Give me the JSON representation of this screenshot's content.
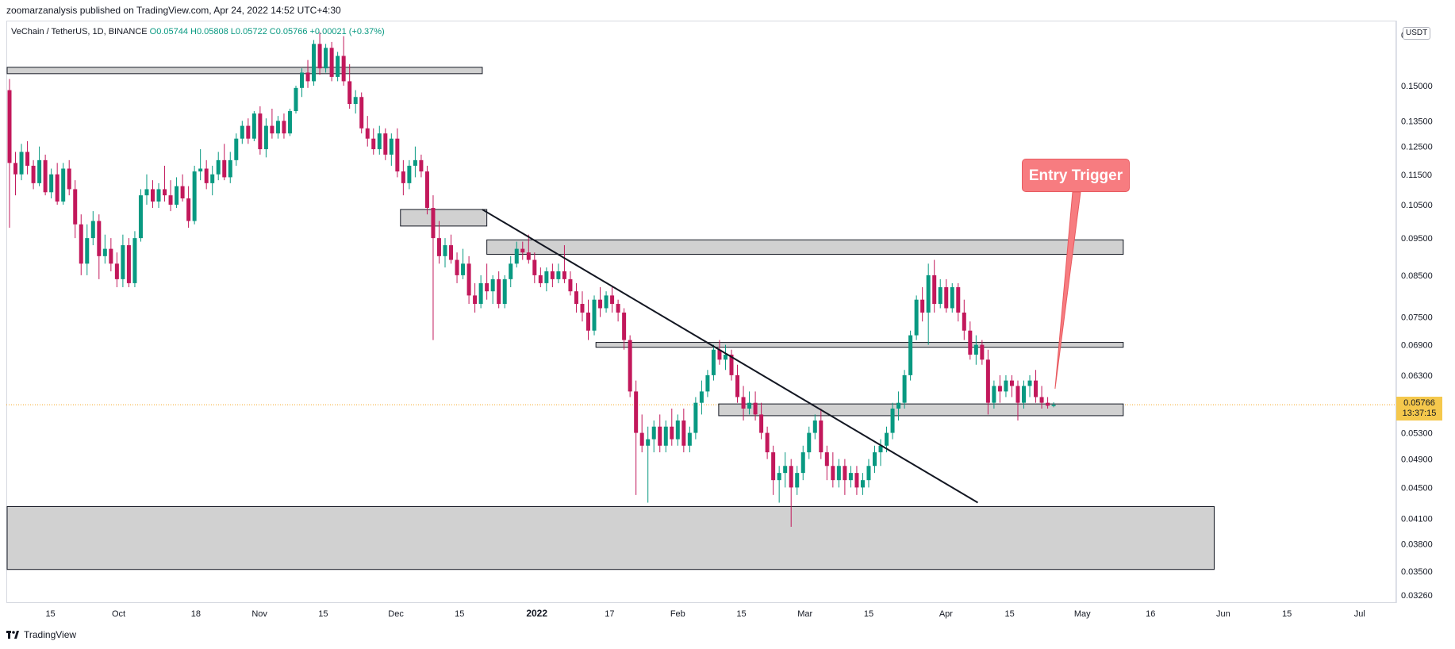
{
  "header": {
    "publisher_line": "zoomarzanalysis published on TradingView.com, Apr 24, 2022 14:52 UTC+4:30"
  },
  "legend": {
    "symbol": "VeChain / TetherUS, 1D, BINANCE",
    "ohlc": "O0.05744 H0.05808 L0.05722 C0.05766 +0.00021 (+0.37%)"
  },
  "price_axis": {
    "currency": "USDT",
    "top_label": "0",
    "last_price": "0.05766",
    "countdown": "13:37:15"
  },
  "annotation": {
    "callout_text": "Entry Trigger"
  },
  "footer": {
    "brand": "TradingView"
  },
  "colors": {
    "up": "#089981",
    "down": "#c2185b",
    "zone_fill": "#d1d1d1",
    "callout": "#f77c80",
    "price_tag": "#f5c84c"
  },
  "chart_data": {
    "type": "candlestick",
    "ylim": [
      0.0326,
      0.178
    ],
    "y_ticks": [
      "0.15000",
      "0.13500",
      "0.12500",
      "0.11500",
      "0.10500",
      "0.09500",
      "0.08500",
      "0.07500",
      "0.06900",
      "0.06300",
      "0.05300",
      "0.04900",
      "0.04500",
      "0.04100",
      "0.03800",
      "0.03500",
      "0.03260"
    ],
    "x_ticks": [
      "15",
      "Oct",
      "18",
      "Nov",
      "15",
      "Dec",
      "15",
      "2022",
      "17",
      "Feb",
      "15",
      "Mar",
      "15",
      "Apr",
      "15",
      "May",
      "16",
      "Jun",
      "15",
      "Jul"
    ],
    "last_price": 0.05766,
    "zones": [
      {
        "x_from": "Sep 6",
        "x_to": "Dec 20",
        "y_low": 0.1555,
        "y_high": 0.1585
      },
      {
        "x_from": "Dec 2",
        "x_to": "Dec 21",
        "y_low": 0.0985,
        "y_high": 0.1035
      },
      {
        "x_from": "Dec 21",
        "x_to": "May 10",
        "y_low": 0.0905,
        "y_high": 0.0945
      },
      {
        "x_from": "Jan 14",
        "x_to": "May 10",
        "y_low": 0.0685,
        "y_high": 0.0695
      },
      {
        "x_from": "Feb 10",
        "x_to": "May 10",
        "y_low": 0.0558,
        "y_high": 0.0578
      },
      {
        "x_from": "Sep 6",
        "x_to": "May 30",
        "y_low": 0.0352,
        "y_high": 0.0425
      }
    ],
    "trendline": {
      "from": [
        "Dec 20",
        0.1035
      ],
      "to": [
        "Apr 8",
        0.043
      ]
    },
    "callout_target": [
      "Apr 25",
      0.0605
    ],
    "candles": [
      [
        0.148,
        0.153,
        0.098,
        0.119
      ],
      [
        0.119,
        0.123,
        0.108,
        0.115
      ],
      [
        0.115,
        0.126,
        0.113,
        0.123
      ],
      [
        0.123,
        0.127,
        0.115,
        0.118
      ],
      [
        0.118,
        0.12,
        0.11,
        0.112
      ],
      [
        0.112,
        0.125,
        0.111,
        0.12
      ],
      [
        0.12,
        0.122,
        0.108,
        0.109
      ],
      [
        0.109,
        0.117,
        0.107,
        0.115
      ],
      [
        0.115,
        0.119,
        0.105,
        0.106
      ],
      [
        0.106,
        0.119,
        0.105,
        0.117
      ],
      [
        0.117,
        0.12,
        0.108,
        0.11
      ],
      [
        0.11,
        0.113,
        0.095,
        0.099
      ],
      [
        0.099,
        0.102,
        0.085,
        0.088
      ],
      [
        0.088,
        0.099,
        0.085,
        0.095
      ],
      [
        0.095,
        0.103,
        0.093,
        0.1
      ],
      [
        0.1,
        0.102,
        0.084,
        0.09
      ],
      [
        0.09,
        0.096,
        0.088,
        0.092
      ],
      [
        0.092,
        0.095,
        0.086,
        0.088
      ],
      [
        0.088,
        0.091,
        0.082,
        0.084
      ],
      [
        0.084,
        0.096,
        0.082,
        0.093
      ],
      [
        0.093,
        0.095,
        0.082,
        0.083
      ],
      [
        0.083,
        0.097,
        0.082,
        0.095
      ],
      [
        0.095,
        0.11,
        0.094,
        0.108
      ],
      [
        0.108,
        0.115,
        0.105,
        0.11
      ],
      [
        0.11,
        0.113,
        0.104,
        0.106
      ],
      [
        0.106,
        0.112,
        0.104,
        0.11
      ],
      [
        0.11,
        0.118,
        0.106,
        0.108
      ],
      [
        0.108,
        0.113,
        0.103,
        0.105
      ],
      [
        0.105,
        0.114,
        0.104,
        0.111
      ],
      [
        0.111,
        0.115,
        0.106,
        0.107
      ],
      [
        0.107,
        0.111,
        0.098,
        0.1
      ],
      [
        0.1,
        0.118,
        0.099,
        0.116
      ],
      [
        0.116,
        0.124,
        0.113,
        0.117
      ],
      [
        0.117,
        0.12,
        0.11,
        0.112
      ],
      [
        0.112,
        0.118,
        0.108,
        0.115
      ],
      [
        0.115,
        0.123,
        0.113,
        0.12
      ],
      [
        0.12,
        0.126,
        0.113,
        0.114
      ],
      [
        0.114,
        0.123,
        0.112,
        0.12
      ],
      [
        0.12,
        0.13,
        0.118,
        0.128
      ],
      [
        0.128,
        0.135,
        0.126,
        0.133
      ],
      [
        0.133,
        0.136,
        0.126,
        0.128
      ],
      [
        0.128,
        0.139,
        0.127,
        0.138
      ],
      [
        0.138,
        0.141,
        0.122,
        0.124
      ],
      [
        0.124,
        0.136,
        0.121,
        0.133
      ],
      [
        0.133,
        0.14,
        0.128,
        0.13
      ],
      [
        0.13,
        0.137,
        0.128,
        0.135
      ],
      [
        0.135,
        0.138,
        0.128,
        0.13
      ],
      [
        0.13,
        0.14,
        0.129,
        0.139
      ],
      [
        0.139,
        0.15,
        0.138,
        0.149
      ],
      [
        0.149,
        0.158,
        0.145,
        0.156
      ],
      [
        0.156,
        0.162,
        0.149,
        0.152
      ],
      [
        0.152,
        0.172,
        0.15,
        0.17
      ],
      [
        0.17,
        0.176,
        0.155,
        0.158
      ],
      [
        0.158,
        0.17,
        0.156,
        0.168
      ],
      [
        0.168,
        0.171,
        0.152,
        0.154
      ],
      [
        0.154,
        0.166,
        0.152,
        0.164
      ],
      [
        0.164,
        0.174,
        0.15,
        0.152
      ],
      [
        0.152,
        0.16,
        0.14,
        0.142
      ],
      [
        0.142,
        0.148,
        0.138,
        0.145
      ],
      [
        0.145,
        0.147,
        0.13,
        0.132
      ],
      [
        0.132,
        0.137,
        0.125,
        0.128
      ],
      [
        0.128,
        0.132,
        0.122,
        0.124
      ],
      [
        0.124,
        0.133,
        0.122,
        0.13
      ],
      [
        0.13,
        0.132,
        0.12,
        0.122
      ],
      [
        0.122,
        0.13,
        0.118,
        0.128
      ],
      [
        0.128,
        0.132,
        0.114,
        0.116
      ],
      [
        0.116,
        0.12,
        0.108,
        0.112
      ],
      [
        0.112,
        0.12,
        0.11,
        0.118
      ],
      [
        0.118,
        0.125,
        0.114,
        0.12
      ],
      [
        0.12,
        0.122,
        0.114,
        0.116
      ],
      [
        0.116,
        0.118,
        0.102,
        0.104
      ],
      [
        0.104,
        0.108,
        0.07,
        0.095
      ],
      [
        0.095,
        0.1,
        0.088,
        0.09
      ],
      [
        0.09,
        0.095,
        0.087,
        0.093
      ],
      [
        0.093,
        0.096,
        0.088,
        0.089
      ],
      [
        0.089,
        0.091,
        0.083,
        0.085
      ],
      [
        0.085,
        0.092,
        0.084,
        0.088
      ],
      [
        0.088,
        0.09,
        0.078,
        0.08
      ],
      [
        0.08,
        0.083,
        0.076,
        0.078
      ],
      [
        0.078,
        0.085,
        0.077,
        0.083
      ],
      [
        0.083,
        0.088,
        0.079,
        0.081
      ],
      [
        0.081,
        0.085,
        0.078,
        0.084
      ],
      [
        0.084,
        0.086,
        0.077,
        0.078
      ],
      [
        0.078,
        0.085,
        0.077,
        0.084
      ],
      [
        0.084,
        0.09,
        0.082,
        0.088
      ],
      [
        0.088,
        0.094,
        0.087,
        0.092
      ],
      [
        0.092,
        0.094,
        0.089,
        0.091
      ],
      [
        0.091,
        0.096,
        0.088,
        0.089
      ],
      [
        0.089,
        0.091,
        0.083,
        0.085
      ],
      [
        0.085,
        0.087,
        0.082,
        0.083
      ],
      [
        0.083,
        0.087,
        0.081,
        0.086
      ],
      [
        0.086,
        0.088,
        0.082,
        0.084
      ],
      [
        0.084,
        0.088,
        0.083,
        0.086
      ],
      [
        0.086,
        0.093,
        0.083,
        0.084
      ],
      [
        0.084,
        0.086,
        0.08,
        0.081
      ],
      [
        0.081,
        0.083,
        0.076,
        0.078
      ],
      [
        0.078,
        0.081,
        0.074,
        0.076
      ],
      [
        0.076,
        0.079,
        0.07,
        0.072
      ],
      [
        0.072,
        0.08,
        0.071,
        0.079
      ],
      [
        0.079,
        0.082,
        0.075,
        0.077
      ],
      [
        0.077,
        0.081,
        0.076,
        0.08
      ],
      [
        0.08,
        0.082,
        0.076,
        0.078
      ],
      [
        0.078,
        0.079,
        0.074,
        0.076
      ],
      [
        0.076,
        0.077,
        0.068,
        0.07
      ],
      [
        0.07,
        0.071,
        0.059,
        0.06
      ],
      [
        0.06,
        0.062,
        0.044,
        0.053
      ],
      [
        0.053,
        0.056,
        0.05,
        0.051
      ],
      [
        0.051,
        0.054,
        0.043,
        0.052
      ],
      [
        0.052,
        0.055,
        0.05,
        0.054
      ],
      [
        0.054,
        0.056,
        0.05,
        0.051
      ],
      [
        0.051,
        0.055,
        0.05,
        0.054
      ],
      [
        0.054,
        0.057,
        0.051,
        0.052
      ],
      [
        0.052,
        0.056,
        0.051,
        0.055
      ],
      [
        0.055,
        0.057,
        0.05,
        0.051
      ],
      [
        0.051,
        0.054,
        0.05,
        0.053
      ],
      [
        0.053,
        0.059,
        0.052,
        0.058
      ],
      [
        0.058,
        0.062,
        0.056,
        0.06
      ],
      [
        0.06,
        0.064,
        0.059,
        0.063
      ],
      [
        0.063,
        0.069,
        0.062,
        0.068
      ],
      [
        0.068,
        0.07,
        0.065,
        0.066
      ],
      [
        0.066,
        0.069,
        0.064,
        0.067
      ],
      [
        0.067,
        0.068,
        0.062,
        0.063
      ],
      [
        0.063,
        0.065,
        0.058,
        0.059
      ],
      [
        0.059,
        0.061,
        0.055,
        0.057
      ],
      [
        0.057,
        0.06,
        0.056,
        0.058
      ],
      [
        0.058,
        0.06,
        0.055,
        0.056
      ],
      [
        0.056,
        0.058,
        0.052,
        0.053
      ],
      [
        0.053,
        0.054,
        0.049,
        0.05
      ],
      [
        0.05,
        0.051,
        0.044,
        0.046
      ],
      [
        0.046,
        0.048,
        0.043,
        0.047
      ],
      [
        0.047,
        0.05,
        0.045,
        0.048
      ],
      [
        0.048,
        0.049,
        0.04,
        0.045
      ],
      [
        0.045,
        0.048,
        0.044,
        0.047
      ],
      [
        0.047,
        0.051,
        0.046,
        0.05
      ],
      [
        0.05,
        0.054,
        0.049,
        0.053
      ],
      [
        0.053,
        0.056,
        0.052,
        0.055
      ],
      [
        0.055,
        0.057,
        0.049,
        0.05
      ],
      [
        0.05,
        0.051,
        0.046,
        0.048
      ],
      [
        0.048,
        0.05,
        0.045,
        0.046
      ],
      [
        0.046,
        0.049,
        0.045,
        0.048
      ],
      [
        0.048,
        0.049,
        0.044,
        0.046
      ],
      [
        0.046,
        0.048,
        0.045,
        0.047
      ],
      [
        0.047,
        0.048,
        0.044,
        0.045
      ],
      [
        0.045,
        0.047,
        0.044,
        0.046
      ],
      [
        0.046,
        0.049,
        0.045,
        0.048
      ],
      [
        0.048,
        0.051,
        0.047,
        0.05
      ],
      [
        0.05,
        0.052,
        0.048,
        0.051
      ],
      [
        0.051,
        0.054,
        0.05,
        0.053
      ],
      [
        0.053,
        0.058,
        0.052,
        0.057
      ],
      [
        0.057,
        0.06,
        0.055,
        0.058
      ],
      [
        0.058,
        0.064,
        0.057,
        0.063
      ],
      [
        0.063,
        0.072,
        0.062,
        0.071
      ],
      [
        0.071,
        0.08,
        0.07,
        0.079
      ],
      [
        0.079,
        0.082,
        0.074,
        0.076
      ],
      [
        0.076,
        0.088,
        0.069,
        0.085
      ],
      [
        0.085,
        0.089,
        0.076,
        0.078
      ],
      [
        0.078,
        0.084,
        0.077,
        0.082
      ],
      [
        0.082,
        0.084,
        0.076,
        0.077
      ],
      [
        0.077,
        0.083,
        0.076,
        0.082
      ],
      [
        0.082,
        0.083,
        0.074,
        0.076
      ],
      [
        0.076,
        0.079,
        0.07,
        0.072
      ],
      [
        0.072,
        0.074,
        0.066,
        0.067
      ],
      [
        0.067,
        0.071,
        0.065,
        0.069
      ],
      [
        0.069,
        0.07,
        0.065,
        0.066
      ],
      [
        0.066,
        0.068,
        0.056,
        0.058
      ],
      [
        0.058,
        0.062,
        0.057,
        0.061
      ],
      [
        0.061,
        0.063,
        0.058,
        0.06
      ],
      [
        0.06,
        0.063,
        0.059,
        0.062
      ],
      [
        0.062,
        0.063,
        0.059,
        0.061
      ],
      [
        0.061,
        0.062,
        0.055,
        0.058
      ],
      [
        0.058,
        0.062,
        0.057,
        0.061
      ],
      [
        0.061,
        0.063,
        0.059,
        0.062
      ],
      [
        0.062,
        0.064,
        0.058,
        0.059
      ],
      [
        0.059,
        0.061,
        0.057,
        0.058
      ],
      [
        0.058,
        0.059,
        0.057,
        0.0575
      ],
      [
        0.05744,
        0.05808,
        0.05722,
        0.05766
      ]
    ]
  }
}
